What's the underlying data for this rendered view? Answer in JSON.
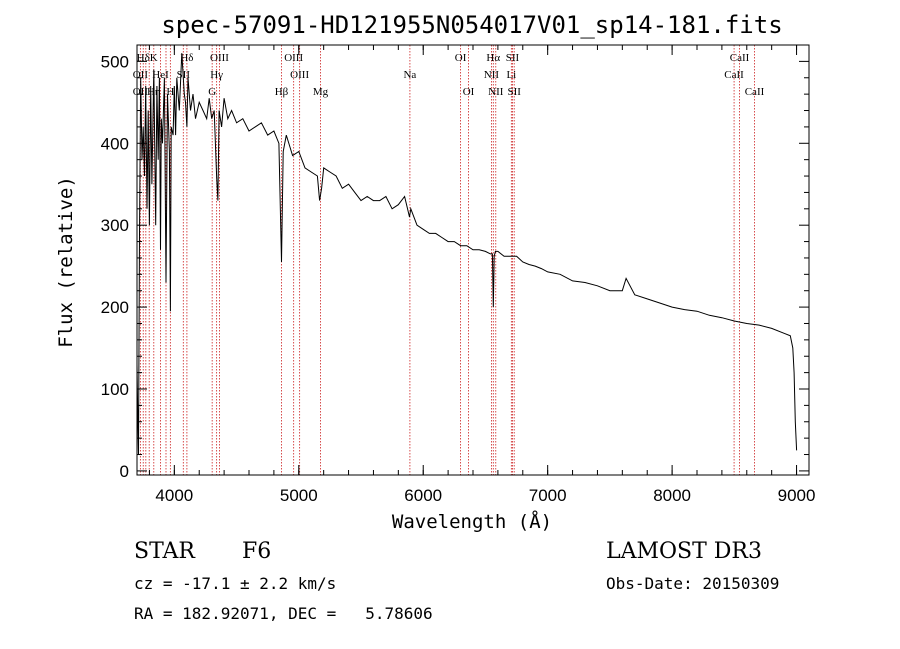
{
  "chart_data": {
    "type": "line",
    "title": "spec-57091-HD121955N054017V01_sp14-181.fits",
    "xlabel": "Wavelength (Å)",
    "ylabel": "Flux (relative)",
    "xlim": [
      3700,
      9100
    ],
    "ylim": [
      -5,
      520
    ],
    "xticks": [
      4000,
      5000,
      6000,
      7000,
      8000,
      9000
    ],
    "yticks": [
      0,
      100,
      200,
      300,
      400,
      500
    ],
    "series": [
      {
        "name": "flux",
        "x": [
          3700,
          3705,
          3712,
          3720,
          3730,
          3740,
          3750,
          3760,
          3770,
          3780,
          3790,
          3800,
          3810,
          3820,
          3835,
          3850,
          3860,
          3870,
          3880,
          3889,
          3895,
          3905,
          3920,
          3933,
          3945,
          3960,
          3968,
          3975,
          3990,
          4000,
          4010,
          4020,
          4040,
          4060,
          4080,
          4090,
          4101,
          4110,
          4130,
          4150,
          4170,
          4200,
          4230,
          4260,
          4280,
          4300,
          4320,
          4340,
          4350,
          4360,
          4380,
          4400,
          4430,
          4460,
          4500,
          4550,
          4600,
          4650,
          4700,
          4750,
          4800,
          4840,
          4861,
          4875,
          4900,
          4950,
          5000,
          5050,
          5100,
          5150,
          5167,
          5183,
          5200,
          5250,
          5300,
          5350,
          5400,
          5450,
          5500,
          5550,
          5600,
          5650,
          5700,
          5750,
          5800,
          5850,
          5890,
          5900,
          5950,
          6000,
          6050,
          6100,
          6150,
          6200,
          6250,
          6300,
          6350,
          6400,
          6450,
          6500,
          6540,
          6556,
          6563,
          6570,
          6580,
          6600,
          6650,
          6700,
          6750,
          6800,
          6850,
          6900,
          6950,
          7000,
          7100,
          7200,
          7300,
          7400,
          7500,
          7600,
          7630,
          7700,
          7800,
          7900,
          8000,
          8100,
          8200,
          8300,
          8400,
          8500,
          8600,
          8700,
          8800,
          8900,
          8950,
          8970,
          8980,
          8990,
          9000
        ],
        "y": [
          130,
          80,
          20,
          290,
          480,
          380,
          420,
          360,
          470,
          320,
          440,
          300,
          470,
          350,
          490,
          300,
          470,
          380,
          480,
          270,
          430,
          400,
          480,
          230,
          460,
          390,
          195,
          420,
          410,
          470,
          410,
          480,
          440,
          510,
          460,
          450,
          420,
          480,
          440,
          460,
          430,
          450,
          440,
          430,
          455,
          430,
          440,
          360,
          330,
          440,
          420,
          455,
          430,
          440,
          425,
          430,
          415,
          420,
          425,
          410,
          415,
          400,
          255,
          390,
          410,
          385,
          390,
          370,
          365,
          360,
          330,
          345,
          370,
          365,
          360,
          345,
          350,
          340,
          330,
          335,
          330,
          330,
          335,
          320,
          325,
          335,
          310,
          320,
          300,
          295,
          290,
          290,
          285,
          280,
          280,
          275,
          275,
          270,
          270,
          268,
          265,
          265,
          200,
          262,
          268,
          268,
          262,
          262,
          262,
          255,
          252,
          250,
          247,
          243,
          240,
          232,
          230,
          226,
          220,
          220,
          235,
          215,
          210,
          205,
          200,
          197,
          195,
          190,
          187,
          183,
          180,
          178,
          174,
          168,
          165,
          150,
          120,
          60,
          25
        ]
      }
    ],
    "lines": [
      {
        "name": "Hδ",
        "wl": 3750,
        "row": 0
      },
      {
        "name": "K",
        "wl": 3834,
        "row": 0
      },
      {
        "name": "Hδ",
        "wl": 4101,
        "row": 0
      },
      {
        "name": "OIII",
        "wl": 4363,
        "row": 0
      },
      {
        "name": "OIII",
        "wl": 4959,
        "row": 0
      },
      {
        "name": "OI",
        "wl": 6300,
        "row": 0
      },
      {
        "name": "Hα",
        "wl": 6563,
        "row": 0
      },
      {
        "name": "SII",
        "wl": 6717,
        "row": 0
      },
      {
        "name": "CaII",
        "wl": 8542,
        "row": 0
      },
      {
        "name": "OII",
        "wl": 3727,
        "row": 1
      },
      {
        "name": "HeI",
        "wl": 3889,
        "row": 1
      },
      {
        "name": "SII",
        "wl": 4072,
        "row": 1
      },
      {
        "name": "Hγ",
        "wl": 4340,
        "row": 1
      },
      {
        "name": "OIII",
        "wl": 5007,
        "row": 1
      },
      {
        "name": "Na",
        "wl": 5893,
        "row": 1
      },
      {
        "name": "NII",
        "wl": 6548,
        "row": 1
      },
      {
        "name": "Li",
        "wl": 6708,
        "row": 1
      },
      {
        "name": "CaII",
        "wl": 8498,
        "row": 1
      },
      {
        "name": "OII",
        "wl": 3727,
        "row": 2
      },
      {
        "name": "Hη",
        "wl": 3835,
        "row": 2
      },
      {
        "name": "H",
        "wl": 3968,
        "row": 2
      },
      {
        "name": "G",
        "wl": 4304,
        "row": 2
      },
      {
        "name": "Hβ",
        "wl": 4861,
        "row": 2
      },
      {
        "name": "Mg",
        "wl": 5175,
        "row": 2
      },
      {
        "name": "OI",
        "wl": 6364,
        "row": 2
      },
      {
        "name": "NII",
        "wl": 6583,
        "row": 2
      },
      {
        "name": "SII",
        "wl": 6731,
        "row": 2
      },
      {
        "name": "CaII",
        "wl": 8662,
        "row": 2
      }
    ],
    "line_marks": [
      3727,
      3750,
      3771,
      3798,
      3835,
      3889,
      3933,
      3968,
      4072,
      4101,
      4304,
      4340,
      4363,
      4861,
      4959,
      5007,
      5175,
      5893,
      6300,
      6364,
      6548,
      6563,
      6583,
      6708,
      6717,
      6731,
      8498,
      8542,
      8662
    ],
    "line_color": "#cc2222"
  },
  "info": {
    "object_type": "STAR",
    "subclass": "F6",
    "cz": "cz = -17.1 ± 2.2 km/s",
    "coords": "RA = 182.92071, DEC =   5.78606",
    "survey": "LAMOST DR3",
    "obs_date": "Obs-Date: 20150309"
  }
}
